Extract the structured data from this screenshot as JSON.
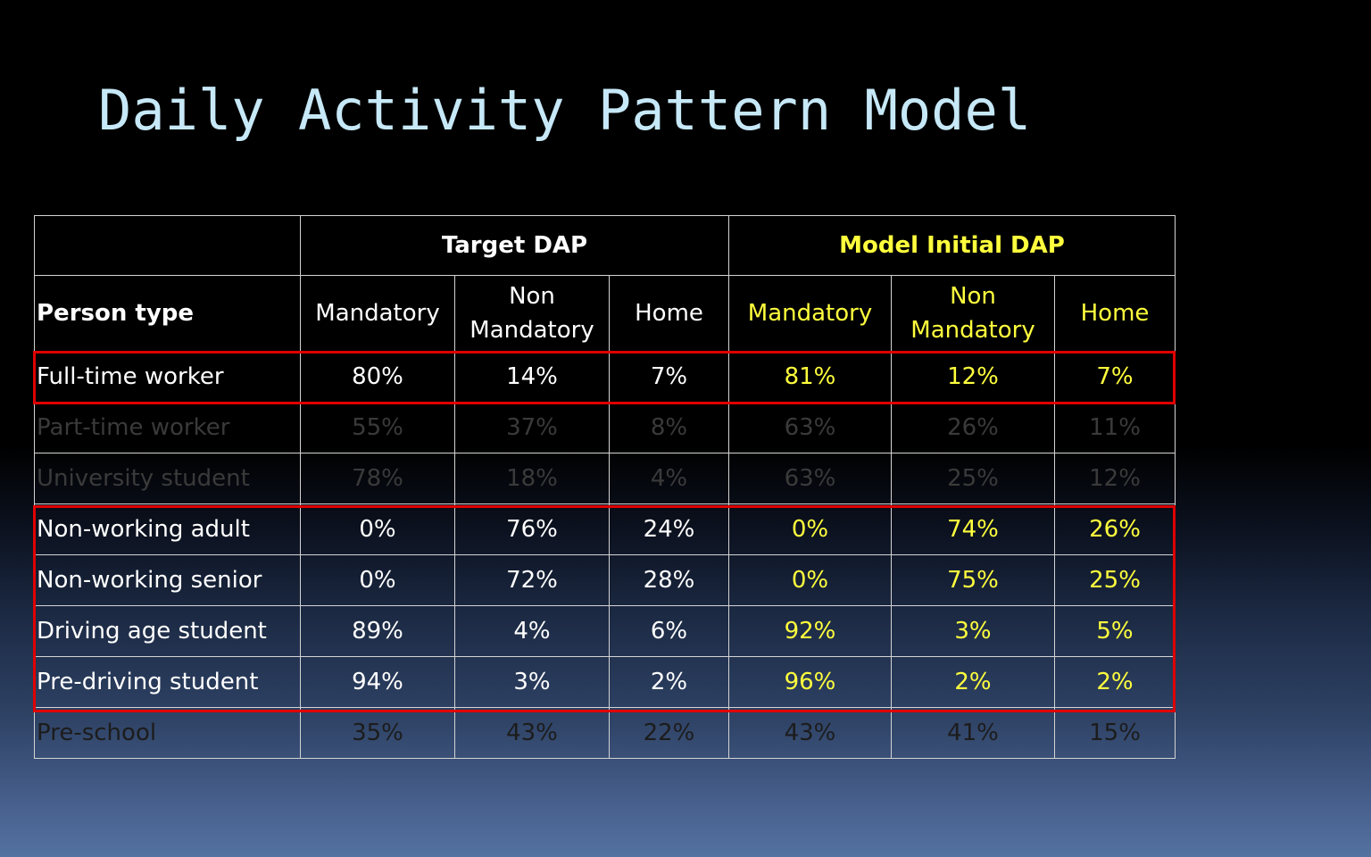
{
  "title": "Daily Activity Pattern Model",
  "colors": {
    "title": "#c6e8f7",
    "target_text": "#ffffff",
    "model_text": "#ffff3d",
    "highlight_border": "#e00000",
    "dimmed_text": "#3a3a3a"
  },
  "table": {
    "group_headers": {
      "target": "Target DAP",
      "model": "Model Initial DAP"
    },
    "columns": {
      "person_type": "Person type",
      "target_mandatory": "Mandatory",
      "target_non_mandatory": "Non Mandatory",
      "target_home": "Home",
      "model_mandatory": "Mandatory",
      "model_non_mandatory": "Non Mandatory",
      "model_home": "Home"
    },
    "rows": [
      {
        "person_type": "Full-time worker",
        "target": [
          "80%",
          "14%",
          "7%"
        ],
        "model": [
          "81%",
          "12%",
          "7%"
        ],
        "highlighted": true,
        "dimmed": false
      },
      {
        "person_type": "Part-time worker",
        "target": [
          "55%",
          "37%",
          "8%"
        ],
        "model": [
          "63%",
          "26%",
          "11%"
        ],
        "highlighted": false,
        "dimmed": true
      },
      {
        "person_type": "University student",
        "target": [
          "78%",
          "18%",
          "4%"
        ],
        "model": [
          "63%",
          "25%",
          "12%"
        ],
        "highlighted": false,
        "dimmed": true
      },
      {
        "person_type": "Non-working adult",
        "target": [
          "0%",
          "76%",
          "24%"
        ],
        "model": [
          "0%",
          "74%",
          "26%"
        ],
        "highlighted": true,
        "dimmed": false
      },
      {
        "person_type": "Non-working senior",
        "target": [
          "0%",
          "72%",
          "28%"
        ],
        "model": [
          "0%",
          "75%",
          "25%"
        ],
        "highlighted": true,
        "dimmed": false
      },
      {
        "person_type": "Driving age student",
        "target": [
          "89%",
          "4%",
          "6%"
        ],
        "model": [
          "92%",
          "3%",
          "5%"
        ],
        "highlighted": true,
        "dimmed": false
      },
      {
        "person_type": "Pre-driving student",
        "target": [
          "94%",
          "3%",
          "2%"
        ],
        "model": [
          "96%",
          "2%",
          "2%"
        ],
        "highlighted": true,
        "dimmed": false
      },
      {
        "person_type": "Pre-school",
        "target": [
          "35%",
          "43%",
          "22%"
        ],
        "model": [
          "43%",
          "41%",
          "15%"
        ],
        "highlighted": false,
        "dimmed": true
      }
    ]
  }
}
